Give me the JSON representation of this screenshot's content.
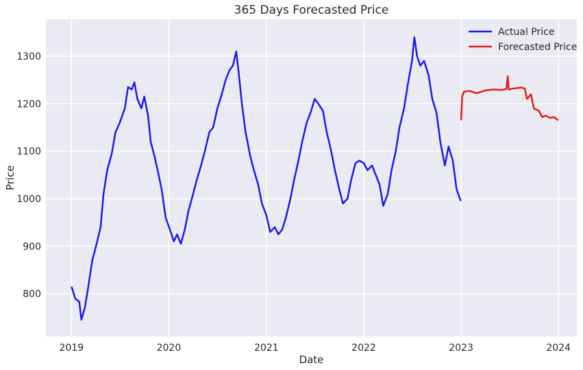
{
  "chart_data": {
    "type": "line",
    "title": "365 Days Forecasted Price",
    "xlabel": "Date",
    "ylabel": "Price",
    "x_axis_type": "date",
    "xlim": [
      "2018-09-27",
      "2024-03-10"
    ],
    "ylim": [
      710,
      1378
    ],
    "x_ticks": [
      "2019",
      "2020",
      "2021",
      "2022",
      "2023",
      "2024"
    ],
    "y_ticks": [
      800,
      900,
      1000,
      1100,
      1200,
      1300
    ],
    "grid": true,
    "legend_position": "top-right",
    "background_color": "#EAEAF2",
    "series": [
      {
        "name": "Actual Price",
        "color": "#1A1AEB",
        "points": [
          [
            "2019-01-01",
            815
          ],
          [
            "2019-01-15",
            790
          ],
          [
            "2019-01-30",
            783
          ],
          [
            "2019-02-07",
            745
          ],
          [
            "2019-02-20",
            770
          ],
          [
            "2019-03-05",
            815
          ],
          [
            "2019-03-20",
            870
          ],
          [
            "2019-04-05",
            905
          ],
          [
            "2019-04-20",
            940
          ],
          [
            "2019-05-01",
            1010
          ],
          [
            "2019-05-15",
            1060
          ],
          [
            "2019-06-01",
            1095
          ],
          [
            "2019-06-15",
            1140
          ],
          [
            "2019-07-01",
            1160
          ],
          [
            "2019-07-20",
            1190
          ],
          [
            "2019-08-01",
            1235
          ],
          [
            "2019-08-15",
            1230
          ],
          [
            "2019-08-25",
            1245
          ],
          [
            "2019-09-05",
            1210
          ],
          [
            "2019-09-20",
            1190
          ],
          [
            "2019-10-01",
            1215
          ],
          [
            "2019-10-15",
            1175
          ],
          [
            "2019-10-25",
            1120
          ],
          [
            "2019-11-08",
            1090
          ],
          [
            "2019-11-20",
            1060
          ],
          [
            "2019-12-05",
            1020
          ],
          [
            "2019-12-20",
            960
          ],
          [
            "2020-01-05",
            935
          ],
          [
            "2020-01-20",
            910
          ],
          [
            "2020-02-01",
            925
          ],
          [
            "2020-02-15",
            905
          ],
          [
            "2020-03-01",
            935
          ],
          [
            "2020-03-15",
            975
          ],
          [
            "2020-04-01",
            1010
          ],
          [
            "2020-04-15",
            1040
          ],
          [
            "2020-05-01",
            1070
          ],
          [
            "2020-05-15",
            1100
          ],
          [
            "2020-06-01",
            1140
          ],
          [
            "2020-06-15",
            1150
          ],
          [
            "2020-07-01",
            1190
          ],
          [
            "2020-07-15",
            1215
          ],
          [
            "2020-08-01",
            1250
          ],
          [
            "2020-08-15",
            1270
          ],
          [
            "2020-08-28",
            1280
          ],
          [
            "2020-09-10",
            1310
          ],
          [
            "2020-09-20",
            1260
          ],
          [
            "2020-10-01",
            1200
          ],
          [
            "2020-10-15",
            1140
          ],
          [
            "2020-11-01",
            1090
          ],
          [
            "2020-11-15",
            1060
          ],
          [
            "2020-12-01",
            1030
          ],
          [
            "2020-12-15",
            990
          ],
          [
            "2021-01-01",
            965
          ],
          [
            "2021-01-15",
            930
          ],
          [
            "2021-02-01",
            940
          ],
          [
            "2021-02-15",
            925
          ],
          [
            "2021-03-01",
            935
          ],
          [
            "2021-03-15",
            960
          ],
          [
            "2021-04-01",
            1000
          ],
          [
            "2021-04-15",
            1040
          ],
          [
            "2021-05-01",
            1080
          ],
          [
            "2021-05-15",
            1120
          ],
          [
            "2021-06-01",
            1160
          ],
          [
            "2021-06-15",
            1180
          ],
          [
            "2021-07-01",
            1210
          ],
          [
            "2021-07-15",
            1200
          ],
          [
            "2021-08-01",
            1185
          ],
          [
            "2021-08-15",
            1140
          ],
          [
            "2021-09-01",
            1100
          ],
          [
            "2021-09-15",
            1060
          ],
          [
            "2021-10-01",
            1020
          ],
          [
            "2021-10-15",
            990
          ],
          [
            "2021-11-01",
            1000
          ],
          [
            "2021-11-15",
            1040
          ],
          [
            "2021-12-01",
            1075
          ],
          [
            "2021-12-15",
            1080
          ],
          [
            "2022-01-01",
            1075
          ],
          [
            "2022-01-15",
            1060
          ],
          [
            "2022-02-01",
            1070
          ],
          [
            "2022-02-15",
            1050
          ],
          [
            "2022-03-01",
            1030
          ],
          [
            "2022-03-15",
            985
          ],
          [
            "2022-04-01",
            1010
          ],
          [
            "2022-04-15",
            1060
          ],
          [
            "2022-05-01",
            1100
          ],
          [
            "2022-05-15",
            1150
          ],
          [
            "2022-06-01",
            1190
          ],
          [
            "2022-06-15",
            1240
          ],
          [
            "2022-07-01",
            1290
          ],
          [
            "2022-07-10",
            1340
          ],
          [
            "2022-07-20",
            1300
          ],
          [
            "2022-08-01",
            1280
          ],
          [
            "2022-08-15",
            1290
          ],
          [
            "2022-09-01",
            1260
          ],
          [
            "2022-09-15",
            1210
          ],
          [
            "2022-10-01",
            1180
          ],
          [
            "2022-10-15",
            1120
          ],
          [
            "2022-11-01",
            1070
          ],
          [
            "2022-11-15",
            1110
          ],
          [
            "2022-12-01",
            1080
          ],
          [
            "2022-12-15",
            1020
          ],
          [
            "2022-12-31",
            995
          ]
        ]
      },
      {
        "name": "Forecasted Price",
        "color": "#E31A1A",
        "points": [
          [
            "2023-01-01",
            1165
          ],
          [
            "2023-01-05",
            1215
          ],
          [
            "2023-01-12",
            1225
          ],
          [
            "2023-02-01",
            1227
          ],
          [
            "2023-03-01",
            1222
          ],
          [
            "2023-04-01",
            1228
          ],
          [
            "2023-05-01",
            1230
          ],
          [
            "2023-06-01",
            1229
          ],
          [
            "2023-06-20",
            1231
          ],
          [
            "2023-06-25",
            1258
          ],
          [
            "2023-06-29",
            1230
          ],
          [
            "2023-07-15",
            1232
          ],
          [
            "2023-08-15",
            1234
          ],
          [
            "2023-08-28",
            1232
          ],
          [
            "2023-09-05",
            1210
          ],
          [
            "2023-09-20",
            1220
          ],
          [
            "2023-10-01",
            1190
          ],
          [
            "2023-10-20",
            1185
          ],
          [
            "2023-11-01",
            1172
          ],
          [
            "2023-11-15",
            1175
          ],
          [
            "2023-12-01",
            1170
          ],
          [
            "2023-12-15",
            1172
          ],
          [
            "2023-12-31",
            1165
          ]
        ]
      }
    ]
  }
}
